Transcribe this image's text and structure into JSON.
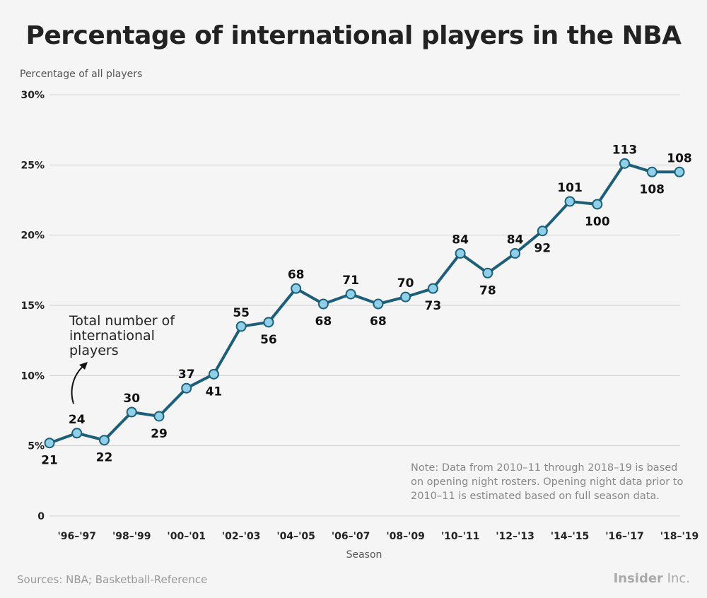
{
  "title": "Percentage of international players in the NBA",
  "annotation": "Total number of international players",
  "note": "Note: Data from 2010–11 through 2018–19 is based on opening night rosters. Opening night data prior to 2010–11 is estimated based on full season data.",
  "sources": "Sources: NBA; Basketball-Reference",
  "brand": {
    "name": "Insider",
    "suffix": " Inc."
  },
  "chart_data": {
    "type": "line",
    "title": "Percentage of international players in the NBA",
    "xlabel": "Season",
    "ylabel": "Percentage of all players",
    "ylim": [
      0,
      30
    ],
    "yticks": [
      {
        "value": 0,
        "label": "0"
      },
      {
        "value": 5,
        "label": "5%"
      },
      {
        "value": 10,
        "label": "10%"
      },
      {
        "value": 15,
        "label": "15%"
      },
      {
        "value": 20,
        "label": "20%"
      },
      {
        "value": 25,
        "label": "25%"
      },
      {
        "value": 30,
        "label": "30%"
      }
    ],
    "x_tick_labels": [
      "'96–'97",
      "'98–'99",
      "'00–'01",
      "'02–'03",
      "'04–'05",
      "'06–'07",
      "'08–'09",
      "'10–'11",
      "'12–'13",
      "'14–'15",
      "'16–'17",
      "'18–'19"
    ],
    "grid": true,
    "series": [
      {
        "y": [
          5.2,
          5.9,
          5.4,
          7.4,
          7.1,
          9.1,
          10.1,
          13.5,
          13.8,
          16.2,
          15.1,
          15.8,
          15.1,
          15.6,
          16.2,
          18.7,
          17.3,
          18.7,
          20.3,
          22.4,
          22.2,
          25.1,
          24.5,
          24.5
        ],
        "point_labels": [
          21,
          24,
          22,
          30,
          29,
          37,
          41,
          55,
          56,
          68,
          68,
          71,
          68,
          70,
          73,
          84,
          78,
          84,
          92,
          101,
          100,
          113,
          108,
          108
        ],
        "label_position": [
          "below",
          "above",
          "below",
          "above",
          "below",
          "above",
          "below",
          "above",
          "below",
          "above",
          "below",
          "above",
          "below",
          "above",
          "below",
          "above",
          "below",
          "above",
          "below",
          "above",
          "below",
          "above",
          "below",
          "above"
        ],
        "color": "#1d5e78",
        "marker_color": "#8fcfe8"
      }
    ]
  }
}
